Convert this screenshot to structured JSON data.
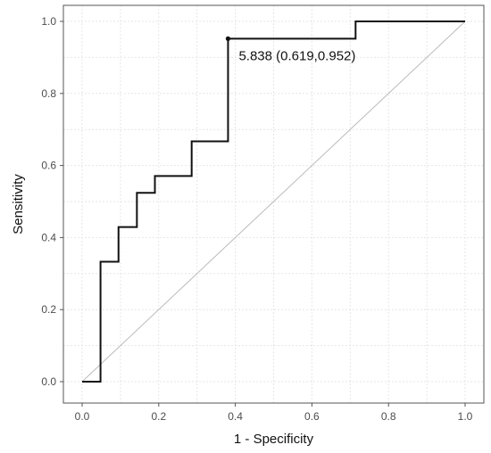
{
  "chart_data": {
    "type": "line",
    "title": "",
    "xlabel": "1 - Specificity",
    "ylabel": "Sensitivity",
    "xlim": [
      0,
      1
    ],
    "ylim": [
      0,
      1
    ],
    "x_ticks": [
      "0.0",
      "0.2",
      "0.4",
      "0.6",
      "0.8",
      "1.0"
    ],
    "y_ticks": [
      "0.0",
      "0.2",
      "0.4",
      "0.6",
      "0.8",
      "1.0"
    ],
    "grid": true,
    "legend": "none",
    "series": [
      {
        "type": "step-line",
        "points": [
          {
            "x": 0.0,
            "y": 0.0
          },
          {
            "x": 0.048,
            "y": 0.0
          },
          {
            "x": 0.048,
            "y": 0.333
          },
          {
            "x": 0.095,
            "y": 0.333
          },
          {
            "x": 0.095,
            "y": 0.429
          },
          {
            "x": 0.143,
            "y": 0.429
          },
          {
            "x": 0.143,
            "y": 0.524
          },
          {
            "x": 0.19,
            "y": 0.524
          },
          {
            "x": 0.19,
            "y": 0.571
          },
          {
            "x": 0.286,
            "y": 0.571
          },
          {
            "x": 0.286,
            "y": 0.667
          },
          {
            "x": 0.381,
            "y": 0.667
          },
          {
            "x": 0.381,
            "y": 0.952
          },
          {
            "x": 0.714,
            "y": 0.952
          },
          {
            "x": 0.714,
            "y": 1.0
          },
          {
            "x": 1.0,
            "y": 1.0
          }
        ]
      },
      {
        "type": "reference-line",
        "points": [
          {
            "x": 0.0,
            "y": 0.0
          },
          {
            "x": 1.0,
            "y": 1.0
          }
        ]
      }
    ],
    "highlight_point": {
      "x": 0.381,
      "y": 0.952
    },
    "annotation": "5.838 (0.619,0.952)"
  },
  "colors": {
    "roc_line": "#111111",
    "reference_line": "#bbbbbb",
    "grid": "#e6e6e6",
    "frame": "#555555",
    "tick_text": "#4d4d4d",
    "axis_title": "#111111"
  }
}
